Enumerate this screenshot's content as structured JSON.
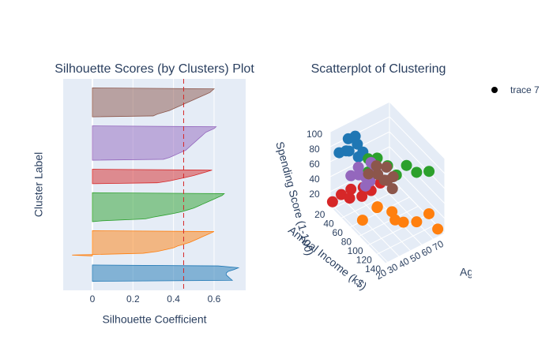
{
  "chart_data": [
    {
      "type": "silhouette",
      "title": "Silhouette Scores (by Clusters) Plot",
      "xlabel": "Silhouette Coefficient",
      "ylabel": "Cluster Label",
      "xlim": [
        -0.144,
        0.756
      ],
      "xticks": [
        0,
        0.2,
        0.4,
        0.6
      ],
      "grid": true,
      "reference_line": {
        "value": 0.45,
        "color": "#d62728"
      },
      "series": [
        {
          "color": "#1f77b4",
          "values": [
            0.69,
            0.68,
            0.67,
            0.66,
            0.66,
            0.67,
            0.7,
            0.72,
            0.62
          ]
        },
        {
          "color": "#ff7f0e",
          "values": [
            -0.1,
            0.25,
            0.32,
            0.36,
            0.4,
            0.42,
            0.45,
            0.48,
            0.5,
            0.52,
            0.54,
            0.56,
            0.58,
            0.6
          ]
        },
        {
          "color": "#2ca02c",
          "values": [
            0.05,
            0.26,
            0.3,
            0.35,
            0.4,
            0.44,
            0.47,
            0.5,
            0.52,
            0.54,
            0.56,
            0.58,
            0.6,
            0.62,
            0.64,
            0.65
          ]
        },
        {
          "color": "#d62728",
          "values": [
            0.32,
            0.38,
            0.42,
            0.46,
            0.5,
            0.53,
            0.56,
            0.59
          ]
        },
        {
          "color": "#9467bd",
          "values": [
            0.35,
            0.38,
            0.4,
            0.42,
            0.44,
            0.46,
            0.47,
            0.48,
            0.49,
            0.5,
            0.51,
            0.52,
            0.53,
            0.54,
            0.55,
            0.56,
            0.58,
            0.6,
            0.61
          ]
        },
        {
          "color": "#8c564b",
          "values": [
            0.3,
            0.32,
            0.35,
            0.38,
            0.4,
            0.42,
            0.44,
            0.46,
            0.48,
            0.5,
            0.52,
            0.54,
            0.56,
            0.58,
            0.59,
            0.6
          ]
        }
      ]
    },
    {
      "type": "scatter3d",
      "title": "Scatterplot of Clustering",
      "xlabel": "Annual Income (k$)",
      "ylabel": "Spending Score (1-100)",
      "zlabel": "Age",
      "xlim": [
        15,
        140
      ],
      "ylim": [
        0,
        100
      ],
      "zlim": [
        18,
        70
      ],
      "xticks": [
        20,
        40,
        60,
        80,
        100,
        120,
        140
      ],
      "yticks": [
        20,
        40,
        60,
        80,
        100
      ],
      "zticks": [
        20,
        30,
        40,
        50,
        60,
        70
      ],
      "legend": "top-right",
      "series": [
        {
          "color": "#1f77b4",
          "x": [
            25,
            30,
            33,
            38,
            40,
            42,
            45,
            48
          ],
          "y": [
            75,
            92,
            80,
            98,
            70,
            86,
            78,
            95
          ],
          "z": [
            22,
            28,
            25,
            31,
            33,
            24,
            35,
            29
          ]
        },
        {
          "color": "#ff7f0e",
          "x": [
            70,
            78,
            85,
            90,
            98,
            105,
            115,
            130,
            137
          ],
          "y": [
            10,
            25,
            15,
            35,
            5,
            20,
            12,
            28,
            8
          ],
          "z": [
            25,
            35,
            45,
            30,
            50,
            40,
            55,
            60,
            65
          ]
        },
        {
          "color": "#2ca02c",
          "x": [
            70,
            75,
            80,
            88,
            95,
            105,
            115,
            125
          ],
          "y": [
            88,
            75,
            92,
            82,
            70,
            85,
            78,
            80
          ],
          "z": [
            30,
            28,
            34,
            40,
            45,
            50,
            55,
            62
          ]
        },
        {
          "color": "#d62728",
          "x": [
            15,
            18,
            20,
            22,
            25,
            28,
            30,
            33
          ],
          "y": [
            5,
            12,
            8,
            15,
            3,
            10,
            6,
            14
          ],
          "z": [
            20,
            35,
            45,
            25,
            50,
            30,
            40,
            55
          ]
        },
        {
          "color": "#9467bd",
          "x": [
            18,
            22,
            25,
            28,
            30,
            33,
            35,
            38
          ],
          "y": [
            30,
            40,
            25,
            35,
            45,
            20,
            38,
            28
          ],
          "z": [
            35,
            40,
            45,
            38,
            48,
            42,
            50,
            44
          ]
        },
        {
          "color": "#8c564b",
          "x": [
            45,
            50,
            55,
            58,
            62,
            65,
            68,
            72
          ],
          "y": [
            45,
            55,
            35,
            50,
            40,
            60,
            30,
            48
          ],
          "z": [
            40,
            45,
            50,
            43,
            55,
            48,
            52,
            46
          ]
        },
        {
          "name": "trace 7",
          "color": "#000000",
          "x": [],
          "y": [],
          "z": []
        }
      ]
    }
  ]
}
